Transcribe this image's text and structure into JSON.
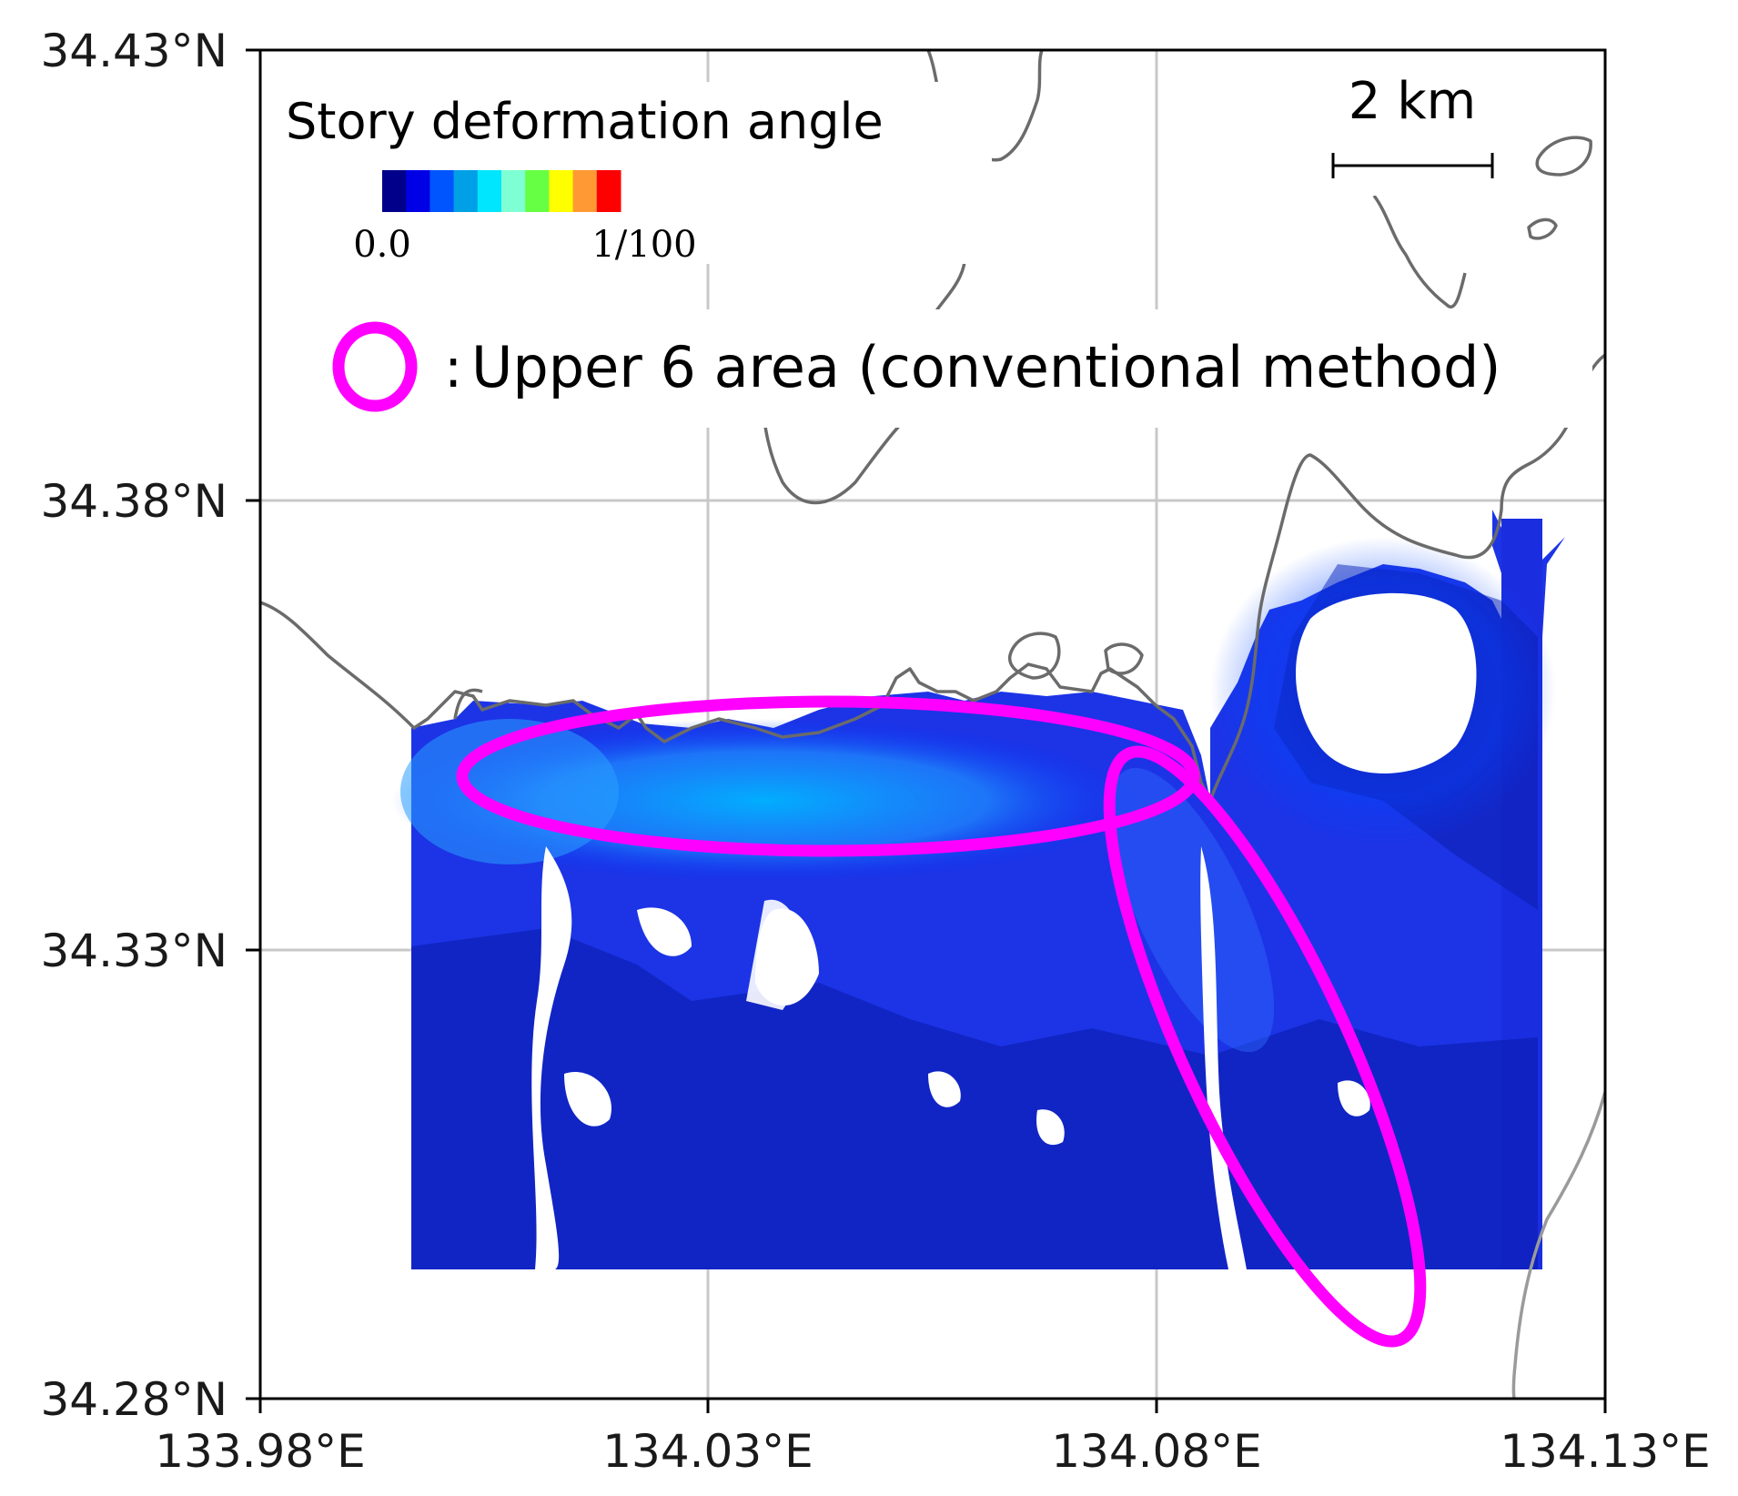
{
  "map": {
    "axes": {
      "x_ticks": [
        "133.98°E",
        "134.03°E",
        "134.08°E",
        "134.13°E"
      ],
      "y_ticks": [
        "34.43°N",
        "34.38°N",
        "34.33°N",
        "34.28°N"
      ],
      "x_range": [
        133.98,
        134.13
      ],
      "y_range": [
        34.28,
        34.43
      ],
      "grid": true
    },
    "legend": {
      "title": "Story deformation angle",
      "min_label": "0.0",
      "max_label": "1/100",
      "colors": [
        "#00008b",
        "#0000e6",
        "#0055ff",
        "#00a0e6",
        "#00e6ff",
        "#7fffd4",
        "#66ff44",
        "#ffff00",
        "#ff9933",
        "#ff0000"
      ]
    },
    "scale_bar": {
      "label": "2 km"
    },
    "annotation": {
      "text": "Upper 6 area (conventional method)",
      "separator": ":",
      "color": "#ff00ff"
    },
    "colors": {
      "coastline": "#6b6b6b",
      "grid": "#c8c8c8",
      "highlight": "#ff00ff"
    }
  }
}
